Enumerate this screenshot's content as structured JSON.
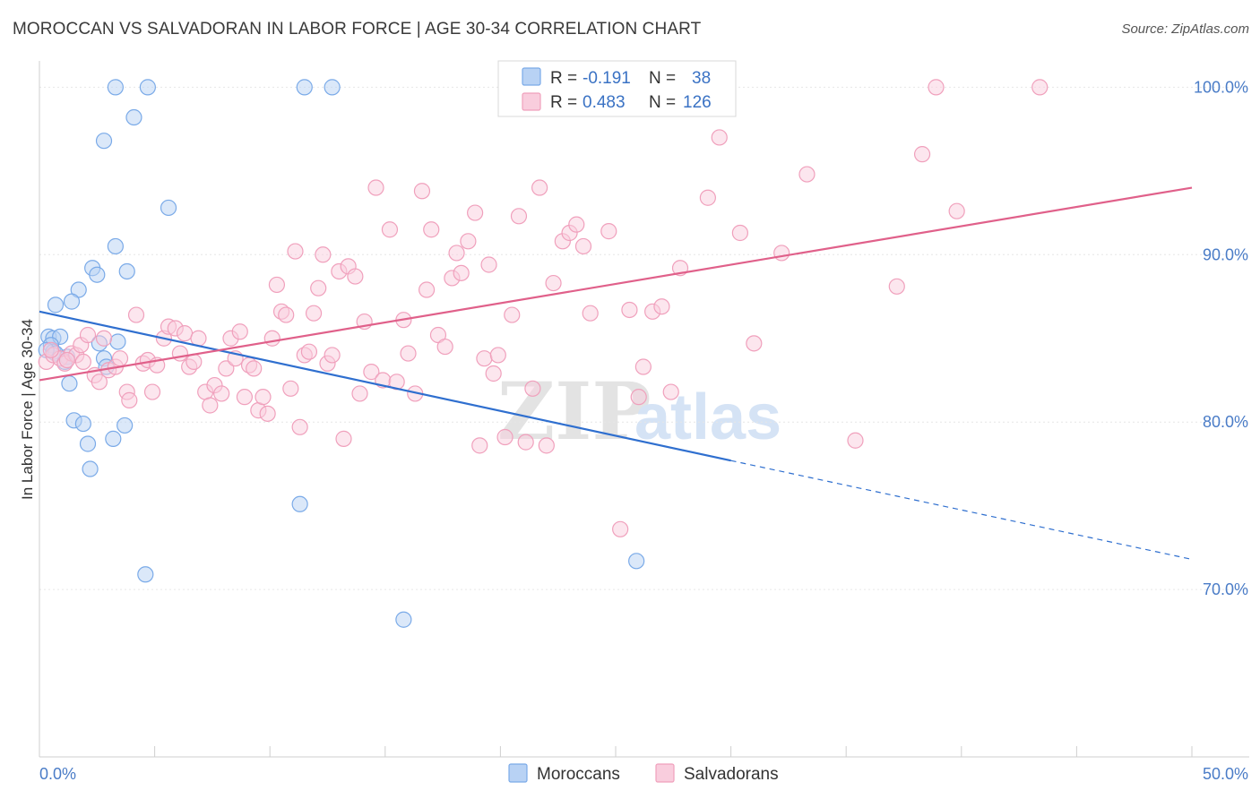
{
  "title": "MOROCCAN VS SALVADORAN IN LABOR FORCE | AGE 30-34 CORRELATION CHART",
  "source": "Source: ZipAtlas.com",
  "watermark": {
    "zip": "ZIP",
    "atlas": "atlas"
  },
  "legend_top": {
    "r_label": "R =",
    "n_label": "N =",
    "rows": [
      {
        "r": "-0.191",
        "n": "38"
      },
      {
        "r": "0.483",
        "n": "126"
      }
    ]
  },
  "chart_data": {
    "type": "scatter",
    "ylabel": "In Labor Force | Age 30-34",
    "xlim": [
      0,
      50
    ],
    "ylim": [
      60,
      102
    ],
    "x_tick_labels": [
      "0.0%",
      "50.0%"
    ],
    "y_ticks": [
      {
        "value": 70,
        "label": "70.0%"
      },
      {
        "value": 80,
        "label": "80.0%"
      },
      {
        "value": 90,
        "label": "90.0%"
      },
      {
        "value": 100,
        "label": "100.0%"
      }
    ],
    "grid": true,
    "legend_placement": "bottom-center",
    "series": [
      {
        "name": "Moroccans",
        "color": "#7aaae8",
        "fill": "#b8d2f4",
        "line_color": "#2f6fcf",
        "trend": {
          "x0": 0,
          "y0": 86.6,
          "x1": 30,
          "y1": 77.7,
          "dash_to_x": 50,
          "dash_to_y": 71.8
        },
        "points": [
          [
            3.3,
            100
          ],
          [
            4.7,
            100
          ],
          [
            11.5,
            100
          ],
          [
            12.7,
            100
          ],
          [
            4.1,
            98.2
          ],
          [
            2.8,
            96.8
          ],
          [
            5.6,
            92.8
          ],
          [
            3.3,
            90.5
          ],
          [
            2.3,
            89.2
          ],
          [
            2.5,
            88.8
          ],
          [
            3.8,
            89
          ],
          [
            1.7,
            87.9
          ],
          [
            1.4,
            87.2
          ],
          [
            0.7,
            87
          ],
          [
            0.4,
            85.1
          ],
          [
            0.6,
            85
          ],
          [
            0.9,
            85.1
          ],
          [
            0.5,
            84.6
          ],
          [
            0.6,
            84.2
          ],
          [
            0.7,
            84.1
          ],
          [
            1.2,
            83.9
          ],
          [
            1.1,
            83.6
          ],
          [
            2.6,
            84.7
          ],
          [
            3.4,
            84.8
          ],
          [
            2.8,
            83.8
          ],
          [
            2.9,
            83.3
          ],
          [
            1.3,
            82.3
          ],
          [
            1.5,
            80.1
          ],
          [
            1.9,
            79.9
          ],
          [
            3.7,
            79.8
          ],
          [
            2.1,
            78.7
          ],
          [
            3.2,
            79
          ],
          [
            2.2,
            77.2
          ],
          [
            11.3,
            75.1
          ],
          [
            4.6,
            70.9
          ],
          [
            25.9,
            71.7
          ],
          [
            15.8,
            68.2
          ],
          [
            0.3,
            84.3
          ]
        ]
      },
      {
        "name": "Salvadorans",
        "color": "#f0a0bc",
        "fill": "#f9cddd",
        "line_color": "#e0608a",
        "trend": {
          "x0": 0,
          "y0": 82.5,
          "x1": 50,
          "y1": 94
        },
        "points": [
          [
            0.3,
            83.6
          ],
          [
            0.6,
            84
          ],
          [
            0.9,
            83.8
          ],
          [
            1.1,
            83.5
          ],
          [
            1.4,
            84.1
          ],
          [
            1.6,
            84
          ],
          [
            1.8,
            84.6
          ],
          [
            1.9,
            83.6
          ],
          [
            2.1,
            85.2
          ],
          [
            2.4,
            82.8
          ],
          [
            2.6,
            82.4
          ],
          [
            2.8,
            85
          ],
          [
            3.0,
            83.1
          ],
          [
            3.3,
            83.3
          ],
          [
            3.5,
            83.8
          ],
          [
            3.8,
            81.8
          ],
          [
            3.9,
            81.3
          ],
          [
            4.2,
            86.4
          ],
          [
            4.5,
            83.5
          ],
          [
            4.7,
            83.7
          ],
          [
            4.9,
            81.8
          ],
          [
            5.1,
            83.4
          ],
          [
            5.4,
            85
          ],
          [
            5.6,
            85.7
          ],
          [
            5.9,
            85.6
          ],
          [
            6.1,
            84.1
          ],
          [
            6.3,
            85.3
          ],
          [
            6.5,
            83.3
          ],
          [
            6.7,
            83.6
          ],
          [
            6.9,
            85
          ],
          [
            7.2,
            81.8
          ],
          [
            7.4,
            81
          ],
          [
            7.6,
            82.2
          ],
          [
            7.9,
            81.7
          ],
          [
            8.1,
            83.2
          ],
          [
            8.3,
            85
          ],
          [
            8.5,
            83.8
          ],
          [
            8.7,
            85.4
          ],
          [
            8.9,
            81.5
          ],
          [
            9.1,
            83.4
          ],
          [
            9.3,
            83.2
          ],
          [
            9.5,
            80.7
          ],
          [
            9.7,
            81.5
          ],
          [
            9.9,
            80.5
          ],
          [
            10.1,
            85
          ],
          [
            10.3,
            88.2
          ],
          [
            10.5,
            86.6
          ],
          [
            10.7,
            86.4
          ],
          [
            10.9,
            82
          ],
          [
            11.1,
            90.2
          ],
          [
            11.3,
            79.7
          ],
          [
            11.5,
            84
          ],
          [
            11.7,
            84.2
          ],
          [
            11.9,
            86.5
          ],
          [
            12.1,
            88
          ],
          [
            12.3,
            90
          ],
          [
            12.5,
            83.5
          ],
          [
            12.7,
            84
          ],
          [
            13.0,
            89
          ],
          [
            13.2,
            79
          ],
          [
            13.4,
            89.3
          ],
          [
            13.7,
            88.7
          ],
          [
            13.9,
            81.7
          ],
          [
            14.1,
            86
          ],
          [
            14.4,
            83
          ],
          [
            14.6,
            94
          ],
          [
            14.9,
            82.5
          ],
          [
            15.2,
            91.5
          ],
          [
            15.5,
            82.4
          ],
          [
            15.8,
            86.1
          ],
          [
            16.0,
            84.1
          ],
          [
            16.3,
            81.7
          ],
          [
            16.6,
            93.8
          ],
          [
            16.8,
            87.9
          ],
          [
            17.0,
            91.5
          ],
          [
            17.3,
            85.2
          ],
          [
            17.6,
            84.5
          ],
          [
            17.9,
            88.6
          ],
          [
            18.1,
            90.1
          ],
          [
            18.3,
            88.9
          ],
          [
            18.6,
            90.8
          ],
          [
            18.9,
            92.5
          ],
          [
            19.1,
            78.6
          ],
          [
            19.3,
            83.8
          ],
          [
            19.5,
            89.4
          ],
          [
            19.7,
            82.9
          ],
          [
            19.9,
            84
          ],
          [
            20.2,
            79.1
          ],
          [
            20.5,
            86.4
          ],
          [
            20.8,
            92.3
          ],
          [
            21.1,
            78.8
          ],
          [
            21.4,
            82
          ],
          [
            21.7,
            94
          ],
          [
            22.0,
            78.6
          ],
          [
            22.3,
            88.3
          ],
          [
            22.7,
            90.8
          ],
          [
            23.0,
            91.3
          ],
          [
            23.3,
            91.8
          ],
          [
            23.6,
            90.5
          ],
          [
            23.9,
            86.5
          ],
          [
            24.3,
            100
          ],
          [
            24.7,
            91.4
          ],
          [
            25.2,
            73.6
          ],
          [
            25.6,
            86.7
          ],
          [
            26.0,
            81.5
          ],
          [
            26.2,
            83.3
          ],
          [
            26.6,
            86.6
          ],
          [
            27.0,
            86.9
          ],
          [
            27.4,
            81.8
          ],
          [
            27.8,
            89.2
          ],
          [
            29.0,
            93.4
          ],
          [
            29.5,
            97
          ],
          [
            30.4,
            91.3
          ],
          [
            31.0,
            84.7
          ],
          [
            32.2,
            90.1
          ],
          [
            33.3,
            94.8
          ],
          [
            35.4,
            78.9
          ],
          [
            37.2,
            88.1
          ],
          [
            38.3,
            96
          ],
          [
            38.9,
            100
          ],
          [
            39.8,
            92.6
          ],
          [
            43.4,
            100
          ],
          [
            0.5,
            84.3
          ],
          [
            1.2,
            83.7
          ]
        ]
      }
    ]
  }
}
